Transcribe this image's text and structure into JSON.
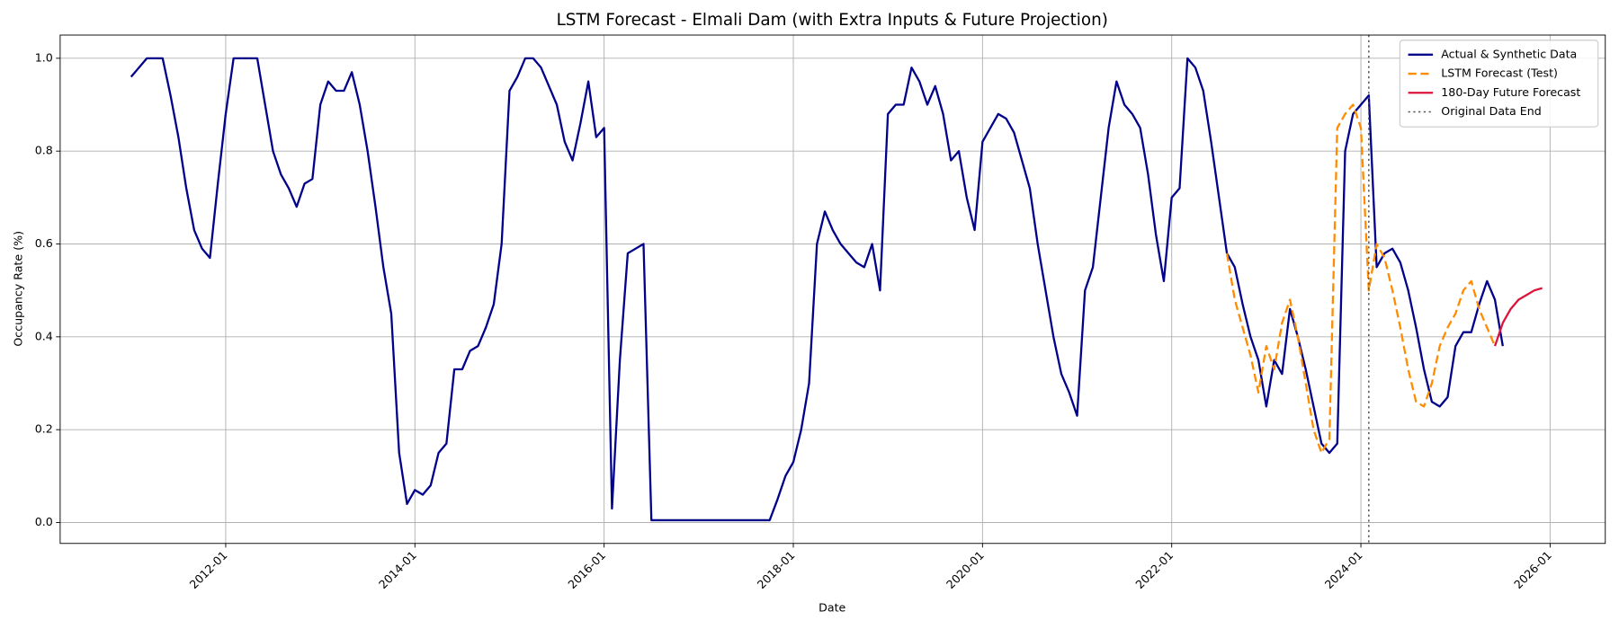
{
  "chart_data": {
    "type": "line",
    "title": "LSTM Forecast - Elmali Dam (with Extra Inputs & Future Projection)",
    "x_label": "Date",
    "y_label": "Occupancy Rate (%)",
    "xlim": [
      "2010-04",
      "2026-08"
    ],
    "xticks": [
      "2012-01",
      "2014-01",
      "2016-01",
      "2018-01",
      "2020-01",
      "2022-01",
      "2024-01",
      "2026-01"
    ],
    "ylim": [
      -0.045,
      1.05
    ],
    "yticks": [
      {
        "value": 0,
        "label": "0.0"
      },
      0.2,
      0.4,
      0.6,
      0.8,
      {
        "value": 1,
        "label": "1.0"
      }
    ],
    "grid": true,
    "legend": "upper right",
    "series": [
      {
        "name": "Actual & Synthetic Data",
        "color": "#00008b",
        "linestyle": "solid",
        "x": [
          "2011-01",
          "2011-02",
          "2011-03",
          "2011-04",
          "2011-05",
          "2011-06",
          "2011-07",
          "2011-08",
          "2011-09",
          "2011-10",
          "2011-11",
          "2011-12",
          "2012-01",
          "2012-02",
          "2012-03",
          "2012-04",
          "2012-05",
          "2012-06",
          "2012-07",
          "2012-08",
          "2012-09",
          "2012-10",
          "2012-11",
          "2012-12",
          "2013-01",
          "2013-02",
          "2013-03",
          "2013-04",
          "2013-05",
          "2013-06",
          "2013-07",
          "2013-08",
          "2013-09",
          "2013-10",
          "2013-11",
          "2013-12",
          "2014-01",
          "2014-02",
          "2014-03",
          "2014-04",
          "2014-05",
          "2014-06",
          "2014-07",
          "2014-08",
          "2014-09",
          "2014-10",
          "2014-11",
          "2014-12",
          "2015-01",
          "2015-02",
          "2015-03",
          "2015-04",
          "2015-05",
          "2015-06",
          "2015-07",
          "2015-08",
          "2015-09",
          "2015-10",
          "2015-11",
          "2015-12",
          "2016-01",
          "2016-02",
          "2016-03",
          "2016-04",
          "2016-05",
          "2016-06",
          "2016-07",
          "2016-08",
          "2016-09",
          "2016-10",
          "2016-11",
          "2016-12",
          "2017-01",
          "2017-02",
          "2017-03",
          "2017-04",
          "2017-05",
          "2017-06",
          "2017-07",
          "2017-08",
          "2017-09",
          "2017-10",
          "2017-11",
          "2017-12",
          "2018-01",
          "2018-02",
          "2018-03",
          "2018-04",
          "2018-05",
          "2018-06",
          "2018-07",
          "2018-08",
          "2018-09",
          "2018-10",
          "2018-11",
          "2018-12",
          "2019-01",
          "2019-02",
          "2019-03",
          "2019-04",
          "2019-05",
          "2019-06",
          "2019-07",
          "2019-08",
          "2019-09",
          "2019-10",
          "2019-11",
          "2019-12",
          "2020-01",
          "2020-02",
          "2020-03",
          "2020-04",
          "2020-05",
          "2020-06",
          "2020-07",
          "2020-08",
          "2020-09",
          "2020-10",
          "2020-11",
          "2020-12",
          "2021-01",
          "2021-02",
          "2021-03",
          "2021-04",
          "2021-05",
          "2021-06",
          "2021-07",
          "2021-08",
          "2021-09",
          "2021-10",
          "2021-11",
          "2021-12",
          "2022-01",
          "2022-02",
          "2022-03",
          "2022-04",
          "2022-05",
          "2022-06",
          "2022-07",
          "2022-08",
          "2022-09",
          "2022-10",
          "2022-11",
          "2022-12",
          "2023-01",
          "2023-02",
          "2023-03",
          "2023-04",
          "2023-05",
          "2023-06",
          "2023-07",
          "2023-08",
          "2023-09",
          "2023-10",
          "2023-11",
          "2023-12",
          "2024-01",
          "2024-02",
          "2024-03",
          "2024-04",
          "2024-05",
          "2024-06",
          "2024-07",
          "2024-08",
          "2024-09",
          "2024-10",
          "2024-11",
          "2024-12",
          "2025-01",
          "2025-02",
          "2025-03",
          "2025-04",
          "2025-05",
          "2025-06",
          "2025-07"
        ],
        "values": [
          0.96,
          0.98,
          1.0,
          1.0,
          1.0,
          0.92,
          0.83,
          0.72,
          0.63,
          0.59,
          0.57,
          0.73,
          0.88,
          1.0,
          1.0,
          1.0,
          1.0,
          0.9,
          0.8,
          0.75,
          0.72,
          0.68,
          0.73,
          0.74,
          0.9,
          0.95,
          0.93,
          0.93,
          0.97,
          0.9,
          0.8,
          0.68,
          0.55,
          0.45,
          0.15,
          0.04,
          0.07,
          0.06,
          0.08,
          0.15,
          0.17,
          0.33,
          0.33,
          0.37,
          0.38,
          0.42,
          0.47,
          0.6,
          0.93,
          0.96,
          1.0,
          1.0,
          0.98,
          0.94,
          0.9,
          0.82,
          0.78,
          0.86,
          0.95,
          0.83,
          0.85,
          0.03,
          0.35,
          0.58,
          0.59,
          0.6,
          0.005,
          0.005,
          0.005,
          0.005,
          0.005,
          0.005,
          0.005,
          0.005,
          0.005,
          0.005,
          0.005,
          0.005,
          0.005,
          0.005,
          0.005,
          0.005,
          0.05,
          0.1,
          0.13,
          0.2,
          0.3,
          0.6,
          0.67,
          0.63,
          0.6,
          0.58,
          0.56,
          0.55,
          0.6,
          0.5,
          0.88,
          0.9,
          0.9,
          0.98,
          0.95,
          0.9,
          0.94,
          0.88,
          0.78,
          0.8,
          0.7,
          0.63,
          0.82,
          0.85,
          0.88,
          0.87,
          0.84,
          0.78,
          0.72,
          0.6,
          0.5,
          0.4,
          0.32,
          0.28,
          0.23,
          0.5,
          0.55,
          0.7,
          0.85,
          0.95,
          0.9,
          0.88,
          0.85,
          0.75,
          0.62,
          0.52,
          0.7,
          0.72,
          1.0,
          0.98,
          0.93,
          0.82,
          0.7,
          0.58,
          0.55,
          0.47,
          0.4,
          0.35,
          0.25,
          0.35,
          0.32,
          0.46,
          0.4,
          0.33,
          0.25,
          0.17,
          0.15,
          0.17,
          0.8,
          0.88,
          0.9,
          0.92,
          0.55,
          0.58,
          0.59,
          0.56,
          0.5,
          0.42,
          0.33,
          0.26,
          0.25,
          0.27,
          0.38,
          0.41,
          0.41,
          0.47,
          0.52,
          0.48,
          0.38
        ]
      },
      {
        "name": "LSTM Forecast (Test)",
        "color": "#ff8c00",
        "linestyle": "dashed",
        "x": [
          "2022-08",
          "2022-09",
          "2022-10",
          "2022-11",
          "2022-12",
          "2023-01",
          "2023-02",
          "2023-03",
          "2023-04",
          "2023-05",
          "2023-06",
          "2023-07",
          "2023-08",
          "2023-09",
          "2023-10",
          "2023-11",
          "2023-12",
          "2024-01",
          "2024-02",
          "2024-03",
          "2024-04",
          "2024-05",
          "2024-06",
          "2024-07",
          "2024-08",
          "2024-09",
          "2024-10",
          "2024-11",
          "2024-12",
          "2025-01",
          "2025-02",
          "2025-03",
          "2025-04",
          "2025-05",
          "2025-06"
        ],
        "values": [
          0.58,
          0.48,
          0.42,
          0.36,
          0.28,
          0.38,
          0.33,
          0.43,
          0.48,
          0.4,
          0.3,
          0.2,
          0.15,
          0.18,
          0.85,
          0.88,
          0.9,
          0.85,
          0.5,
          0.6,
          0.57,
          0.5,
          0.42,
          0.33,
          0.26,
          0.25,
          0.3,
          0.38,
          0.42,
          0.45,
          0.5,
          0.52,
          0.46,
          0.42,
          0.38
        ]
      },
      {
        "name": "180-Day Future Forecast",
        "color": "#dc143c",
        "linestyle": "solid",
        "x": [
          "2025-06",
          "2025-07",
          "2025-08",
          "2025-09",
          "2025-10",
          "2025-11",
          "2025-12"
        ],
        "values": [
          0.38,
          0.43,
          0.46,
          0.48,
          0.49,
          0.5,
          0.505
        ]
      }
    ],
    "vlines": [
      {
        "name": "Original Data End",
        "color": "#555555",
        "linestyle": "dotted",
        "x": "2024-02"
      }
    ]
  }
}
